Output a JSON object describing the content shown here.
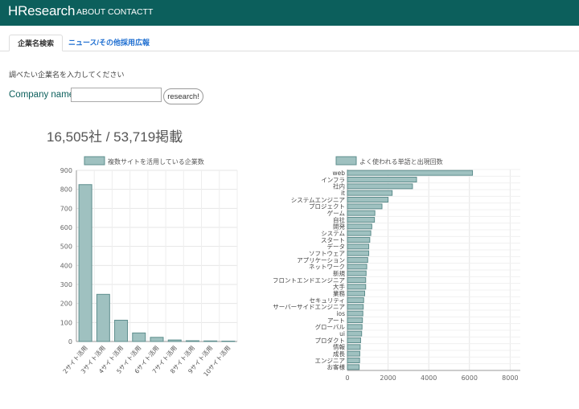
{
  "nav": {
    "brand": "HResearch",
    "about": "ABOUT",
    "contact": "CONTACTT"
  },
  "tabs": [
    {
      "label": "企業名検索",
      "active": true
    },
    {
      "label": "ニュース/その他採用広報",
      "active": false
    }
  ],
  "search": {
    "instruction": "調べたい企業名を入力してください",
    "label": "Company name",
    "value": "",
    "button": "research!"
  },
  "stats": "16,505社 / 53,719掲載",
  "colors": {
    "navbar": "#0c5f5c",
    "bar_fill": "#9fc1c0",
    "bar_stroke": "#5e8e8d",
    "link": "#1f6fd1"
  },
  "chart_data": [
    {
      "type": "bar",
      "legend": "複数サイトを活用している企業数",
      "categories": [
        "2サイト活用",
        "3サイト活用",
        "4サイト活用",
        "5サイト活用",
        "6サイト活用",
        "7サイト活用",
        "8サイト活用",
        "9サイト活用",
        "10サイト活用"
      ],
      "values": [
        825,
        248,
        112,
        45,
        22,
        8,
        4,
        3,
        2
      ],
      "ylim": [
        0,
        900
      ],
      "yticks": [
        "0",
        "100",
        "200",
        "300",
        "400",
        "500",
        "600",
        "700",
        "800",
        "900"
      ],
      "grid": true,
      "legend_position": "top"
    },
    {
      "type": "bar",
      "orientation": "horizontal",
      "legend": "よく使われる単語と出現回数",
      "categories": [
        "web",
        "インフラ",
        "社内",
        "it",
        "システムエンジニア",
        "プロジェクト",
        "ゲーム",
        "自社",
        "開発",
        "システム",
        "スタート",
        "データ",
        "ソフトウェア",
        "アプリケーション",
        "ネットワーク",
        "新規",
        "フロントエンドエンジニア",
        "大手",
        "業務",
        "セキュリティ",
        "サーバーサイドエンジニア",
        "ios",
        "アート",
        "グローバル",
        "ui",
        "プロダクト",
        "情報",
        "成長",
        "エンジニア",
        "お客様"
      ],
      "values": [
        6150,
        3400,
        3200,
        2200,
        2000,
        1700,
        1350,
        1330,
        1200,
        1150,
        1100,
        1050,
        1050,
        1000,
        950,
        920,
        900,
        900,
        850,
        800,
        780,
        760,
        740,
        720,
        700,
        650,
        630,
        610,
        600,
        580
      ],
      "xlim": [
        0,
        8500
      ],
      "xticks": [
        "0",
        "2000",
        "4000",
        "6000",
        "8000"
      ],
      "grid": true,
      "legend_position": "top"
    }
  ]
}
